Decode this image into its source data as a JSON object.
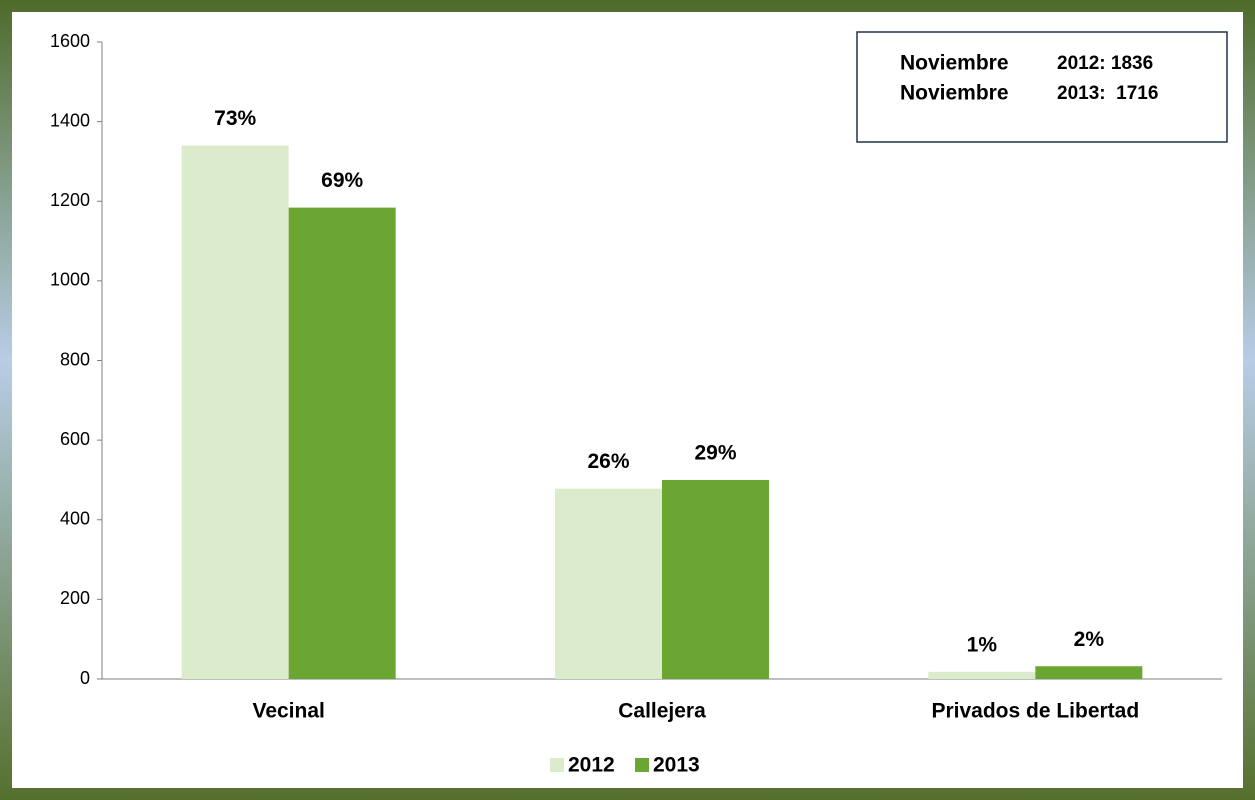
{
  "chart_data": {
    "type": "bar",
    "categories": [
      "Vecinal",
      "Callejera",
      "Privados de Libertad"
    ],
    "series": [
      {
        "name": "2012",
        "color": "#dcebcb",
        "values": [
          1340,
          478,
          18
        ],
        "labels": [
          "73%",
          "26%",
          "1%"
        ]
      },
      {
        "name": "2013",
        "color": "#6ba532",
        "values": [
          1184,
          500,
          32
        ],
        "labels": [
          "69%",
          "29%",
          "2%"
        ]
      }
    ],
    "ylim": [
      0,
      1600
    ],
    "yticks": [
      0,
      200,
      400,
      600,
      800,
      1000,
      1200,
      1400,
      1600
    ],
    "grid": false,
    "legend": "bottom",
    "annotations": [
      {
        "label": "Noviembre",
        "text": "2012: 1836"
      },
      {
        "label": "Noviembre",
        "text": "2013:  1716"
      }
    ]
  }
}
